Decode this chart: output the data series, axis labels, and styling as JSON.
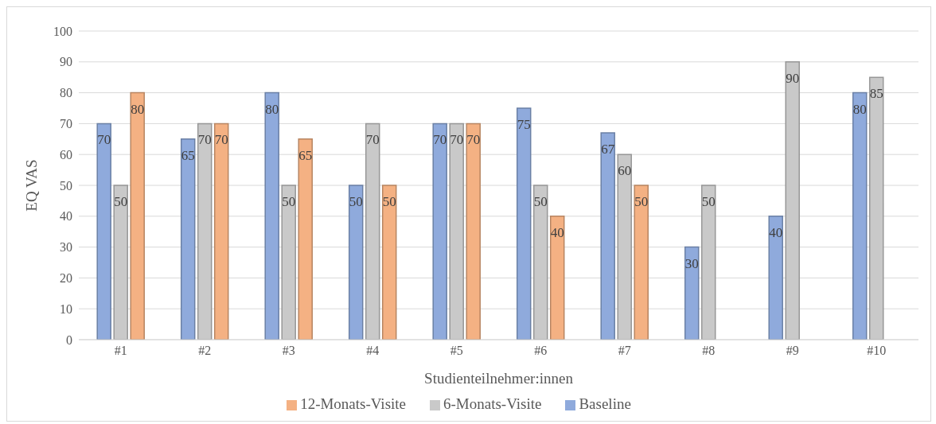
{
  "chart_data": {
    "type": "bar",
    "xlabel": "Studienteilnehmer:innen",
    "ylabel": "EQ VAS",
    "categories": [
      "#1",
      "#2",
      "#3",
      "#4",
      "#5",
      "#6",
      "#7",
      "#8",
      "#9",
      "#10"
    ],
    "series": [
      {
        "name": "Baseline",
        "color": "#8faadc",
        "values": [
          70,
          65,
          80,
          50,
          70,
          75,
          67,
          30,
          40,
          80
        ]
      },
      {
        "name": "6-Monats-Visite",
        "color": "#c9c9c9",
        "values": [
          50,
          70,
          50,
          70,
          70,
          50,
          60,
          50,
          90,
          85
        ]
      },
      {
        "name": "12-Monats-Visite",
        "color": "#f4b183",
        "values": [
          80,
          70,
          65,
          50,
          70,
          40,
          50,
          null,
          null,
          null
        ]
      }
    ],
    "ylim": [
      0,
      100
    ],
    "yticks": [
      0,
      10,
      20,
      30,
      40,
      50,
      60,
      70,
      80,
      90,
      100
    ],
    "grid": "y",
    "legend": "bottom",
    "data_labels": true
  }
}
